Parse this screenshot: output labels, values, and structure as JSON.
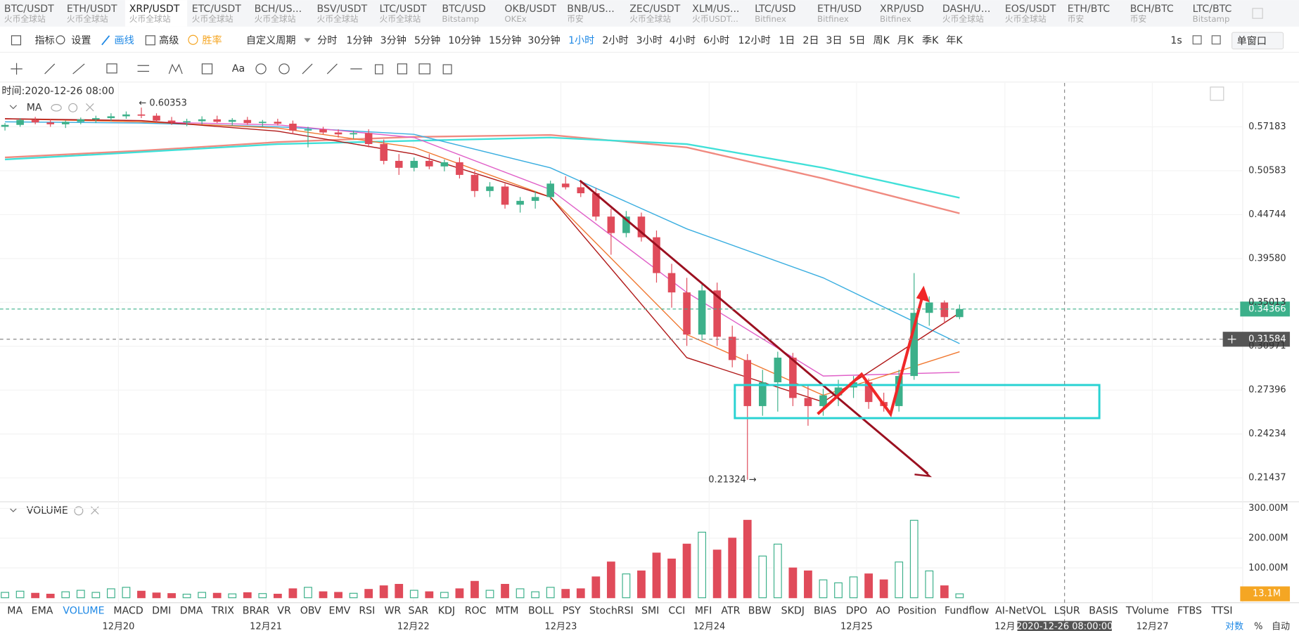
{
  "tabs": [
    {
      "symbol": "BTC/USDT",
      "exchange": "火币全球站"
    },
    {
      "symbol": "ETH/USDT",
      "exchange": "火币全球站"
    },
    {
      "symbol": "XRP/USDT",
      "exchange": "火币全球站"
    },
    {
      "symbol": "ETC/USDT",
      "exchange": "火币全球站"
    },
    {
      "symbol": "BCH/US...",
      "exchange": "火币全球站"
    },
    {
      "symbol": "BSV/USDT",
      "exchange": "火币全球站"
    },
    {
      "symbol": "LTC/USDT",
      "exchange": "火币全球站"
    },
    {
      "symbol": "BTC/USD",
      "exchange": "Bitstamp"
    },
    {
      "symbol": "OKB/USDT",
      "exchange": "OKEx"
    },
    {
      "symbol": "BNB/US...",
      "exchange": "币安"
    },
    {
      "symbol": "ZEC/USDT",
      "exchange": "火币全球站"
    },
    {
      "symbol": "XLM/US...",
      "exchange": "火币USDT..."
    },
    {
      "symbol": "LTC/USD",
      "exchange": "Bitfinex"
    },
    {
      "symbol": "ETH/USD",
      "exchange": "Bitfinex"
    },
    {
      "symbol": "XRP/USD",
      "exchange": "Bitfinex"
    },
    {
      "symbol": "DASH/U...",
      "exchange": "火币全球站"
    },
    {
      "symbol": "EOS/USDT",
      "exchange": "火币全球站"
    },
    {
      "symbol": "ETH/BTC",
      "exchange": "币安"
    },
    {
      "symbol": "BCH/BTC",
      "exchange": "币安"
    },
    {
      "symbol": "LTC/BTC",
      "exchange": "Bitstamp"
    }
  ],
  "selected_tab": 2,
  "toolbar": {
    "buttons": [
      "指标",
      "设置",
      "画线",
      "高级",
      "胜率"
    ],
    "period_menu": "自定义周期",
    "periods": [
      "分时",
      "1分钟",
      "3分钟",
      "5分钟",
      "10分钟",
      "15分钟",
      "30分钟",
      "1小时",
      "2小时",
      "3小时",
      "4小时",
      "6小时",
      "12小时",
      "1日",
      "2日",
      "3日",
      "5日",
      "周K",
      "月K",
      "季K",
      "年K"
    ],
    "selected_period": 7,
    "speed": "1s",
    "window_menu": "单窗口"
  },
  "drawing_toolbar": {
    "text_tool": "Aa"
  },
  "time_info": "时间:2020-12-26 08:00",
  "main_indicator": "MA",
  "volume_indicator": "VOLUME",
  "indicator_tabs": [
    "MA",
    "EMA",
    "VOLUME",
    "MACD",
    "DMI",
    "DMA",
    "TRIX",
    "BRAR",
    "VR",
    "OBV",
    "EMV",
    "RSI",
    "WR",
    "SAR",
    "KDJ",
    "ROC",
    "MTM",
    "BOLL",
    "PSY",
    "StochRSI",
    "SMI",
    "CCI",
    "MFI",
    "ATR",
    "BBW",
    "SKDJ",
    "BIAS",
    "DPO",
    "AO",
    "Position",
    "Fundflow",
    "AI-NetVOL",
    "LSUR",
    "BASIS",
    "TVolume",
    "FTBS",
    "TTSI"
  ],
  "selected_indicator": 2,
  "scale_options": [
    "对数",
    "%",
    "自动"
  ],
  "chart_data": {
    "type": "candlestick",
    "log_scale": true,
    "grid": true,
    "up_color": "#3cb08a",
    "down_color": "#e04b5a",
    "x_labels": [
      "12月20",
      "12月21",
      "12月22",
      "12月23",
      "12月24",
      "12月25",
      "12月",
      "12月27"
    ],
    "crosshair_time": "2020-12-26 08:00:00",
    "ylim": [
      0.201,
      0.6466
    ],
    "yticks": [
      0.57183,
      0.50583,
      0.44744,
      {
        "value": 0.3958,
        "label": "0.39580"
      },
      0.35013,
      0.30971,
      0.27396,
      0.24234,
      0.21437
    ],
    "current_price": 0.34366,
    "current_price_color": "#3cb08a",
    "crosshair_price": 0.31584,
    "high_label": {
      "value": 0.60353,
      "label": "← 0.60353"
    },
    "low_label": {
      "value": 0.21324,
      "label": "0.21324 →"
    },
    "ohlc": [
      [
        0.572,
        0.578,
        0.566,
        0.575
      ],
      [
        0.575,
        0.586,
        0.572,
        0.583
      ],
      [
        0.583,
        0.588,
        0.576,
        0.579
      ],
      [
        0.579,
        0.584,
        0.572,
        0.576
      ],
      [
        0.576,
        0.582,
        0.57,
        0.58
      ],
      [
        0.58,
        0.587,
        0.576,
        0.584
      ],
      [
        0.584,
        0.59,
        0.578,
        0.586
      ],
      [
        0.586,
        0.594,
        0.581,
        0.589
      ],
      [
        0.589,
        0.597,
        0.585,
        0.592
      ],
      [
        0.592,
        0.60353,
        0.586,
        0.59
      ],
      [
        0.59,
        0.594,
        0.578,
        0.582
      ],
      [
        0.582,
        0.588,
        0.575,
        0.579
      ],
      [
        0.579,
        0.585,
        0.573,
        0.581
      ],
      [
        0.581,
        0.589,
        0.576,
        0.584
      ],
      [
        0.584,
        0.59,
        0.578,
        0.58
      ],
      [
        0.58,
        0.586,
        0.574,
        0.583
      ],
      [
        0.583,
        0.588,
        0.575,
        0.578
      ],
      [
        0.578,
        0.583,
        0.572,
        0.58
      ],
      [
        0.58,
        0.585,
        0.574,
        0.577
      ],
      [
        0.577,
        0.582,
        0.56,
        0.566
      ],
      [
        0.566,
        0.572,
        0.54,
        0.568
      ],
      [
        0.568,
        0.572,
        0.56,
        0.563
      ],
      [
        0.563,
        0.568,
        0.555,
        0.56
      ],
      [
        0.56,
        0.566,
        0.553,
        0.562
      ],
      [
        0.562,
        0.568,
        0.54,
        0.545
      ],
      [
        0.545,
        0.552,
        0.515,
        0.52
      ],
      [
        0.52,
        0.53,
        0.5,
        0.51
      ],
      [
        0.51,
        0.525,
        0.505,
        0.52
      ],
      [
        0.52,
        0.53,
        0.508,
        0.512
      ],
      [
        0.512,
        0.522,
        0.505,
        0.518
      ],
      [
        0.518,
        0.525,
        0.495,
        0.5
      ],
      [
        0.5,
        0.506,
        0.47,
        0.478
      ],
      [
        0.478,
        0.49,
        0.47,
        0.484
      ],
      [
        0.484,
        0.488,
        0.455,
        0.46
      ],
      [
        0.46,
        0.47,
        0.45,
        0.465
      ],
      [
        0.465,
        0.478,
        0.455,
        0.47
      ],
      [
        0.47,
        0.492,
        0.466,
        0.488
      ],
      [
        0.488,
        0.498,
        0.48,
        0.483
      ],
      [
        0.483,
        0.49,
        0.47,
        0.475
      ],
      [
        0.475,
        0.482,
        0.44,
        0.445
      ],
      [
        0.445,
        0.455,
        0.4,
        0.425
      ],
      [
        0.425,
        0.452,
        0.42,
        0.445
      ],
      [
        0.445,
        0.45,
        0.415,
        0.42
      ],
      [
        0.42,
        0.428,
        0.37,
        0.38
      ],
      [
        0.38,
        0.39,
        0.345,
        0.36
      ],
      [
        0.36,
        0.375,
        0.31,
        0.32
      ],
      [
        0.32,
        0.368,
        0.315,
        0.362
      ],
      [
        0.362,
        0.37,
        0.31,
        0.318
      ],
      [
        0.318,
        0.328,
        0.292,
        0.298
      ],
      [
        0.298,
        0.303,
        0.21324,
        0.262
      ],
      [
        0.262,
        0.29,
        0.255,
        0.28
      ],
      [
        0.28,
        0.305,
        0.258,
        0.3
      ],
      [
        0.3,
        0.304,
        0.262,
        0.268
      ],
      [
        0.268,
        0.278,
        0.248,
        0.262
      ],
      [
        0.262,
        0.275,
        0.255,
        0.27
      ],
      [
        0.27,
        0.282,
        0.262,
        0.276
      ],
      [
        0.276,
        0.285,
        0.268,
        0.28
      ],
      [
        0.28,
        0.283,
        0.26,
        0.265
      ],
      [
        0.265,
        0.272,
        0.258,
        0.262
      ],
      [
        0.262,
        0.29,
        0.258,
        0.285
      ],
      [
        0.285,
        0.38,
        0.282,
        0.34
      ],
      [
        0.34,
        0.356,
        0.328,
        0.35
      ],
      [
        0.35,
        0.352,
        0.33,
        0.336
      ],
      [
        0.336,
        0.348,
        0.334,
        0.34366
      ]
    ],
    "ma_x_index": [
      0,
      9,
      18,
      27,
      36,
      45,
      54,
      63
    ],
    "ma_lines": [
      {
        "color": "#f08a80",
        "values": [
          0.525,
          0.535,
          0.548,
          0.556,
          0.559,
          0.54,
          0.495,
          0.449
        ]
      },
      {
        "color": "#40e0d8",
        "values": [
          0.522,
          0.533,
          0.545,
          0.55,
          0.555,
          0.545,
          0.51,
          0.469
        ]
      },
      {
        "color": "#3aaee0",
        "values": [
          0.58,
          0.578,
          0.572,
          0.56,
          0.51,
          0.43,
          0.375,
          0.312
        ]
      },
      {
        "color": "#e060c8",
        "values": [
          0.585,
          0.58,
          0.575,
          0.555,
          0.48,
          0.36,
          0.285,
          0.288
        ]
      },
      {
        "color": "#f07830",
        "values": [
          0.585,
          0.58,
          0.57,
          0.54,
          0.47,
          0.32,
          0.27,
          0.305
        ]
      },
      {
        "color": "#b01818",
        "values": [
          0.585,
          0.582,
          0.565,
          0.53,
          0.47,
          0.3,
          0.265,
          0.34
        ]
      }
    ],
    "volume": {
      "ylim": [
        0,
        310000000
      ],
      "yticks": [
        {
          "value": 300000000,
          "label": "300.00M"
        },
        {
          "value": 200000000,
          "label": "200.00M"
        },
        {
          "value": 100000000,
          "label": "100.00M"
        }
      ],
      "current": {
        "value": 13100000,
        "label": "13.1M"
      },
      "current_color": "#f5a623",
      "values": [
        18000000,
        22000000,
        15000000,
        12000000,
        20000000,
        25000000,
        18000000,
        30000000,
        35000000,
        22000000,
        16000000,
        14000000,
        12000000,
        18000000,
        15000000,
        13000000,
        17000000,
        14000000,
        12000000,
        30000000,
        35000000,
        20000000,
        18000000,
        15000000,
        28000000,
        40000000,
        45000000,
        25000000,
        20000000,
        18000000,
        30000000,
        55000000,
        25000000,
        45000000,
        30000000,
        20000000,
        35000000,
        28000000,
        30000000,
        70000000,
        120000000,
        80000000,
        90000000,
        150000000,
        130000000,
        180000000,
        220000000,
        160000000,
        200000000,
        260000000,
        140000000,
        180000000,
        100000000,
        90000000,
        60000000,
        50000000,
        70000000,
        80000000,
        60000000,
        120000000,
        260000000,
        90000000,
        40000000,
        13100000
      ]
    }
  }
}
